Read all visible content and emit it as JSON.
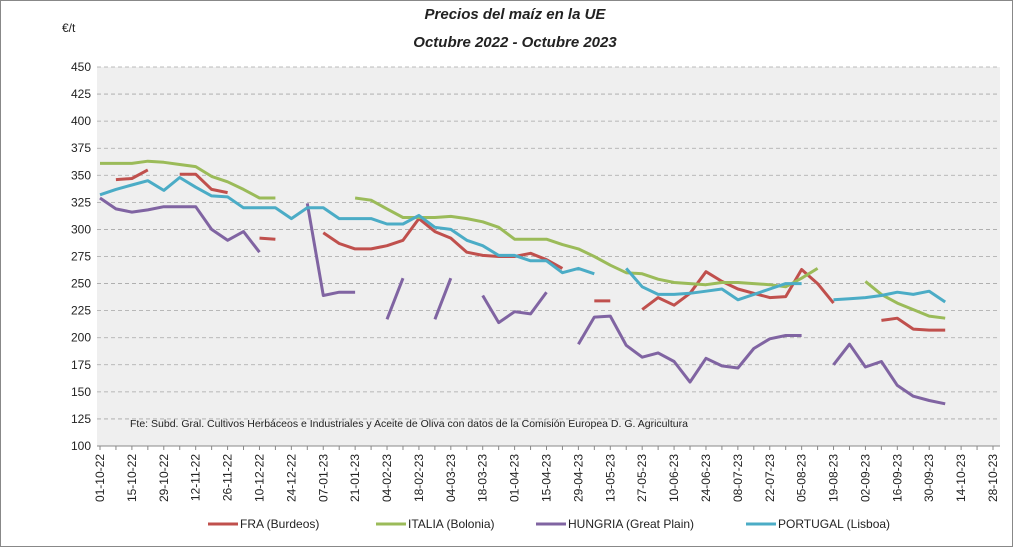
{
  "chart_data": {
    "type": "line",
    "title": "Precios del maíz en la UE",
    "subtitle": "Octubre 2022 - Octubre 2023",
    "y_label": "€/t",
    "note": "Fte: Subd. Gral. Cultivos Herbáceos e Industriales y Aceite de Oliva con datos de la Comisión Europea D. G. Agricultura",
    "categories": [
      "01-10-22",
      null,
      "15-10-22",
      null,
      "29-10-22",
      null,
      "12-11-22",
      null,
      "26-11-22",
      null,
      "10-12-22",
      null,
      "24-12-22",
      null,
      "07-01-23",
      null,
      "21-01-23",
      null,
      "04-02-23",
      null,
      "18-02-23",
      null,
      "04-03-23",
      null,
      "18-03-23",
      null,
      "01-04-23",
      null,
      "15-04-23",
      null,
      "29-04-23",
      null,
      "13-05-23",
      null,
      "27-05-23",
      null,
      "10-06-23",
      null,
      "24-06-23",
      null,
      "08-07-23",
      null,
      "22-07-23",
      null,
      "05-08-23",
      null,
      "19-08-23",
      null,
      "02-09-23",
      null,
      "16-09-23",
      null,
      "30-09-23",
      null,
      "14-10-23",
      null,
      "28-10-23"
    ],
    "series": [
      {
        "name": "FRA (Burdeos)",
        "color": "#c0504d",
        "values": [
          null,
          346,
          347,
          355,
          null,
          351,
          351,
          337,
          334,
          null,
          292,
          291,
          null,
          null,
          297,
          287,
          282,
          282,
          285,
          290,
          310,
          298,
          292,
          279,
          276,
          275,
          275,
          278,
          272,
          264,
          null,
          234,
          234,
          null,
          226,
          237,
          230,
          241,
          261,
          252,
          245,
          241,
          237,
          238,
          263,
          250,
          232,
          null,
          null,
          216,
          218,
          208,
          207,
          207,
          null,
          null,
          null
        ]
      },
      {
        "name": "ITALIA (Bolonia)",
        "color": "#9bbb59",
        "values": [
          361,
          361,
          361,
          363,
          362,
          360,
          358,
          349,
          344,
          337,
          329,
          329,
          null,
          null,
          null,
          null,
          329,
          327,
          319,
          311,
          311,
          311,
          312,
          310,
          307,
          302,
          291,
          291,
          291,
          286,
          282,
          275,
          267,
          260,
          259,
          254,
          251,
          250,
          249,
          251,
          251,
          250,
          249,
          247,
          255,
          264,
          null,
          null,
          252,
          240,
          232,
          226,
          220,
          218,
          null,
          null,
          null
        ]
      },
      {
        "name": "HUNGRIA (Great Plain)",
        "color": "#8064a2",
        "values": [
          329,
          319,
          316,
          318,
          321,
          321,
          321,
          300,
          290,
          298,
          279,
          null,
          null,
          324,
          239,
          242,
          242,
          null,
          217,
          255,
          null,
          217,
          255,
          null,
          239,
          214,
          224,
          222,
          242,
          null,
          194,
          219,
          220,
          193,
          182,
          186,
          178,
          159,
          181,
          174,
          172,
          190,
          199,
          202,
          202,
          null,
          175,
          194,
          173,
          178,
          156,
          146,
          142,
          139,
          null,
          null,
          null
        ]
      },
      {
        "name": "PORTUGAL (Lisboa)",
        "color": "#4bacc6",
        "values": [
          332,
          337,
          341,
          345,
          336,
          348,
          339,
          331,
          330,
          320,
          320,
          320,
          310,
          320,
          320,
          310,
          310,
          310,
          305,
          305,
          313,
          302,
          300,
          290,
          285,
          276,
          276,
          271,
          271,
          260,
          264,
          259,
          null,
          264,
          247,
          240,
          240,
          241,
          243,
          245,
          235,
          240,
          245,
          250,
          250,
          null,
          235,
          236,
          237,
          239,
          242,
          240,
          243,
          233,
          null,
          null,
          null
        ]
      }
    ],
    "ylim": [
      100,
      450
    ],
    "yticks": [
      100,
      125,
      150,
      175,
      200,
      225,
      250,
      275,
      300,
      325,
      350,
      375,
      400,
      425,
      450
    ],
    "grid": true,
    "legend": "bottom"
  }
}
